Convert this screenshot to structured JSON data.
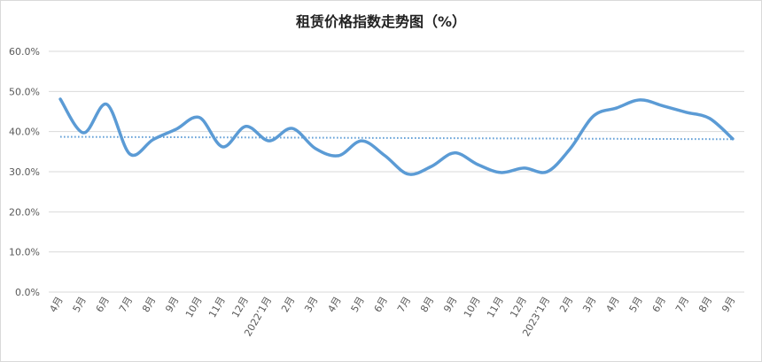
{
  "chart_data": {
    "type": "line",
    "title": "租赁价格指数走势图（%）",
    "categories": [
      "4月",
      "5月",
      "6月",
      "7月",
      "8月",
      "9月",
      "10月",
      "11月",
      "12月",
      "2022’1月",
      "2月",
      "3月",
      "4月",
      "5月",
      "6月",
      "7月",
      "8月",
      "9月",
      "10月",
      "11月",
      "12月",
      "2023’1月",
      "2月",
      "3月",
      "4月",
      "5月",
      "6月",
      "7月",
      "8月",
      "9月"
    ],
    "series": [
      {
        "color": "#5b9bd5",
        "values": [
          48.1,
          39.7,
          46.8,
          34.4,
          38.0,
          40.6,
          43.5,
          36.2,
          41.3,
          37.7,
          40.8,
          35.8,
          34.0,
          37.7,
          34.0,
          29.4,
          31.3,
          34.7,
          31.8,
          29.8,
          30.9,
          30.0,
          35.8,
          43.9,
          45.9,
          47.9,
          46.4,
          44.8,
          43.3,
          38.2
        ]
      }
    ],
    "trend": {
      "color": "#5b9bd5",
      "values": [
        38.7,
        38.1
      ]
    },
    "ylim": [
      0,
      60
    ],
    "yticks": [
      {
        "value": 0,
        "label": "0.0%"
      },
      {
        "value": 10,
        "label": "10.0%"
      },
      {
        "value": 20,
        "label": "20.0%"
      },
      {
        "value": 30,
        "label": "30.0%"
      },
      {
        "value": 40,
        "label": "40.0%"
      },
      {
        "value": 50,
        "label": "50.0%"
      },
      {
        "value": 60,
        "label": "60.0%"
      }
    ],
    "grid": true
  }
}
